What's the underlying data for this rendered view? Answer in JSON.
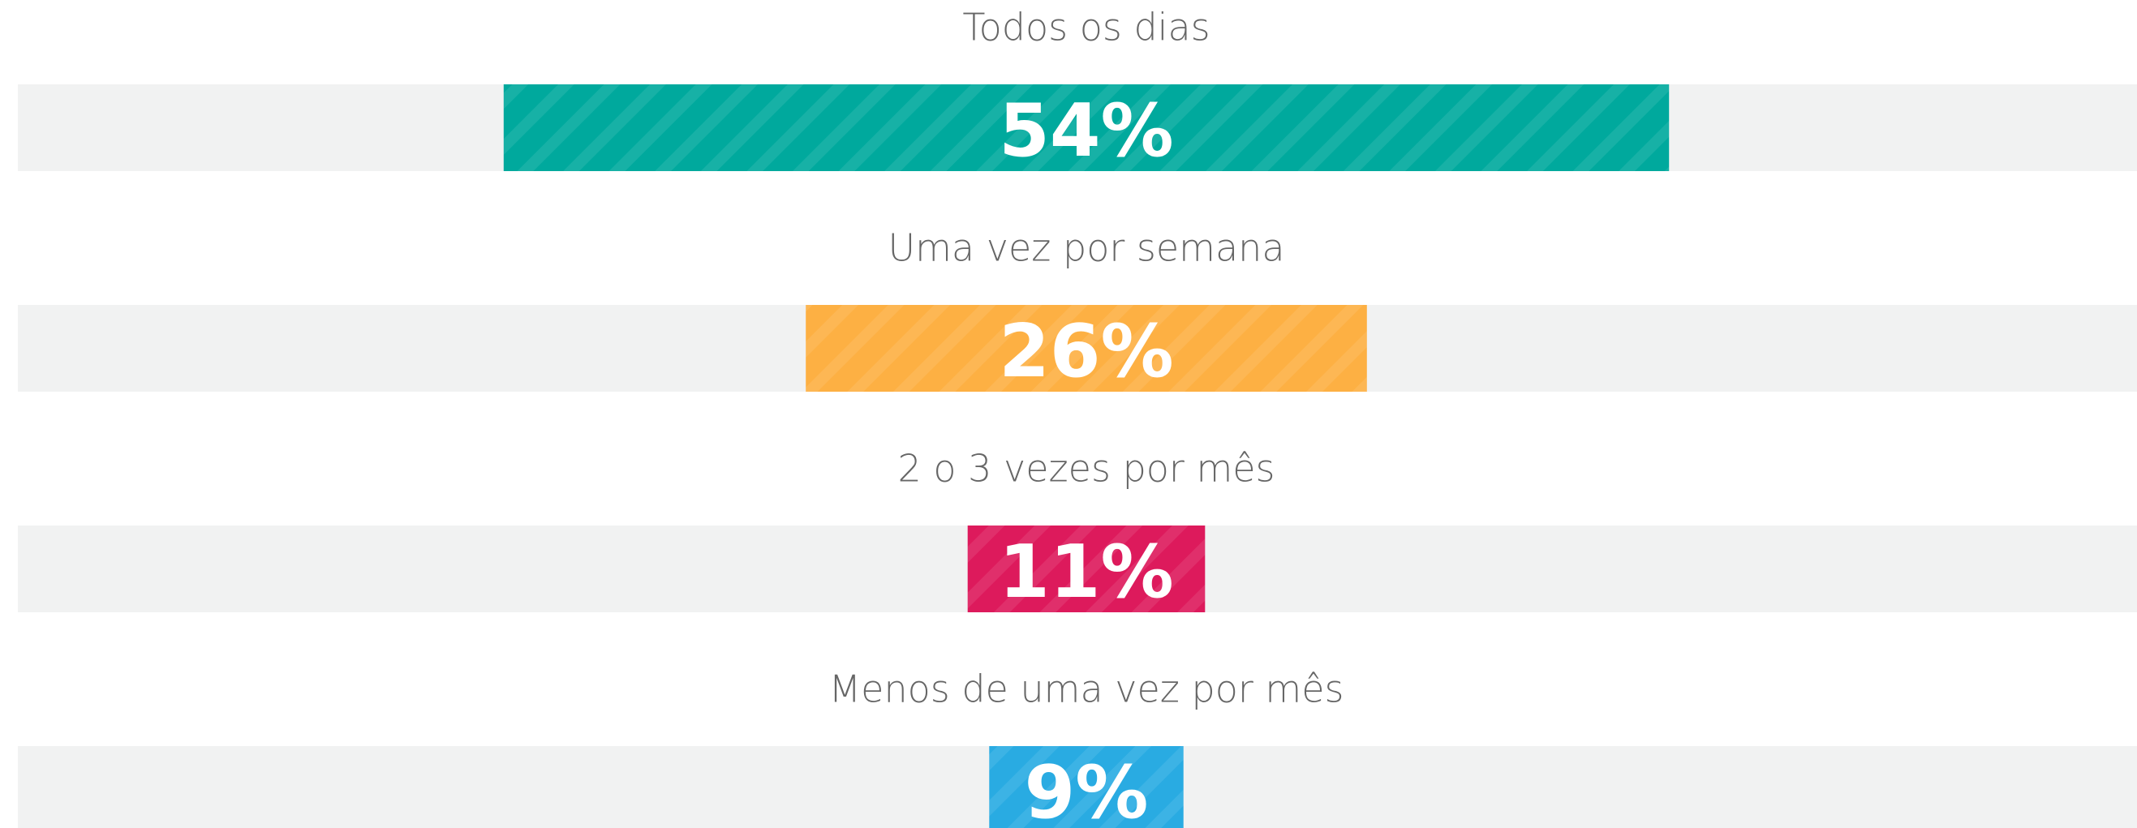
{
  "chart_data": {
    "type": "bar",
    "categories": [
      "Todos os dias",
      "Uma vez por semana",
      "2 o 3 vezes por mês",
      "Menos de uma vez por mês"
    ],
    "values": [
      54,
      26,
      11,
      9
    ],
    "value_labels": [
      "54%",
      "26%",
      "11%",
      "9%"
    ],
    "colors": [
      "#00a99d",
      "#fdb043",
      "#dd1a5c",
      "#29abe2"
    ],
    "xlim": [
      0,
      100
    ]
  }
}
